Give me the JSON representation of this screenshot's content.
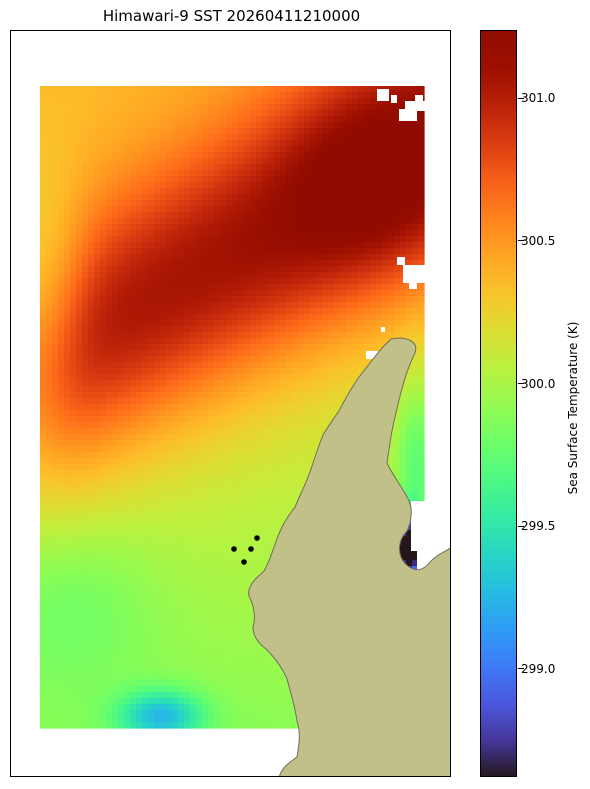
{
  "chart_data": {
    "type": "heatmap",
    "title": "Himawari-9 SST 20260411210000",
    "colorbar": {
      "label": "Sea Surface Temperature (K)",
      "vmin": 298.62,
      "vmax": 301.24,
      "ticks": [
        "299.0",
        "299.5",
        "300.0",
        "300.5",
        "301.0"
      ],
      "tick_values": [
        299.0,
        299.5,
        300.0,
        300.5,
        301.0
      ],
      "colormap": "turbo"
    },
    "field_summary": {
      "warm_band_max": 301.2,
      "northwest_value": 300.35,
      "southwest_value": 300.0,
      "south_cool_patch": 299.6,
      "east_cove_min": 298.7
    },
    "colors": {
      "land": "#c2c089",
      "coast": "#6e6e5a",
      "frame": "#000000",
      "markers": "#000000"
    },
    "markers": {
      "count": 4,
      "symbol": "dot"
    },
    "axes": {
      "ticks_shown": false,
      "grid": false
    }
  }
}
